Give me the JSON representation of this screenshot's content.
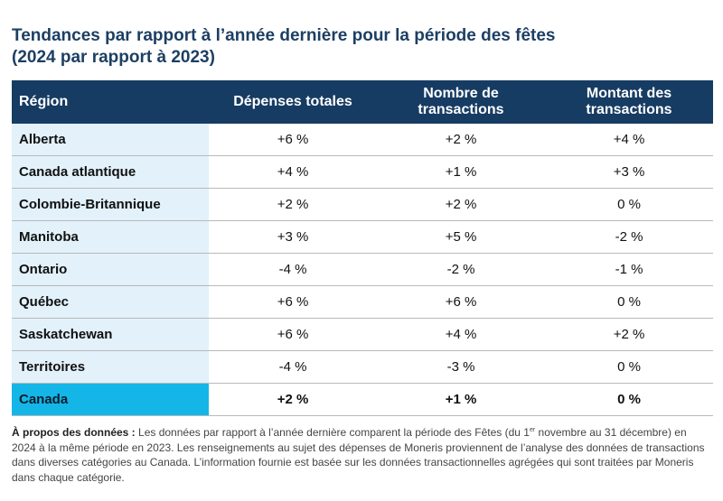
{
  "title": {
    "line1": "Tendances par rapport à l’année dernière pour la période des fêtes",
    "line2": "(2024 par rapport à 2023)"
  },
  "table": {
    "headers": {
      "region": "Région",
      "depenses": "Dépenses totales",
      "nombre_l1": "Nombre de",
      "nombre_l2": "transactions",
      "montant_l1": "Montant des",
      "montant_l2": "transactions"
    },
    "rows": [
      {
        "region": "Alberta",
        "depenses": "+6 %",
        "nombre": "+2 %",
        "montant": "+4 %"
      },
      {
        "region": "Canada atlantique",
        "depenses": "+4 %",
        "nombre": "+1 %",
        "montant": "+3 %"
      },
      {
        "region": "Colombie-Britannique",
        "depenses": "+2 %",
        "nombre": "+2 %",
        "montant": "0 %"
      },
      {
        "region": "Manitoba",
        "depenses": "+3 %",
        "nombre": "+5 %",
        "montant": "-2 %"
      },
      {
        "region": "Ontario",
        "depenses": "-4 %",
        "nombre": "-2 %",
        "montant": "-1 %"
      },
      {
        "region": "Québec",
        "depenses": "+6 %",
        "nombre": "+6 %",
        "montant": "0 %"
      },
      {
        "region": "Saskatchewan",
        "depenses": "+6 %",
        "nombre": "+4 %",
        "montant": "+2 %"
      },
      {
        "region": "Territoires",
        "depenses": "-4 %",
        "nombre": "-3 %",
        "montant": "0 %"
      }
    ],
    "total": {
      "region": "Canada",
      "depenses": "+2 %",
      "nombre": "+1 %",
      "montant": "0 %"
    }
  },
  "note": {
    "label": "À propos des données :",
    "text_a": " Les données par rapport à l’année dernière comparent la période des Fêtes (du 1",
    "sup": "er",
    "text_b": " novembre au 31 décembre) en 2024 à la même période en 2023. Les renseignements au sujet des dépenses de Moneris proviennent de l’analyse des données de transactions dans diverses catégories au Canada. L’information fournie est basée sur les données transactionnelles agrégées qui sont traitées par Moneris dans chaque catégorie."
  },
  "colors": {
    "header_bg": "#173c63",
    "title": "#1d3f63",
    "region_bg": "#e2f1fa",
    "total_bg": "#13b6e6"
  }
}
